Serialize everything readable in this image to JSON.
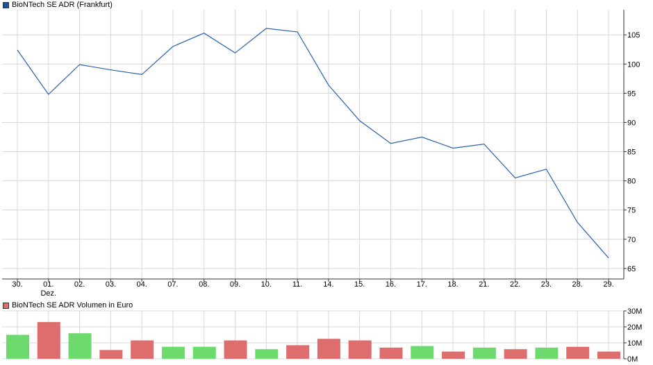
{
  "colors": {
    "price_line": "#2a5fb0",
    "price_swatch": "#1c4fa8",
    "volume_up": "#6cda6c",
    "volume_down": "#de6e6e",
    "grid": "#d8d8d8",
    "axis": "#333333"
  },
  "chart_data": [
    {
      "type": "line",
      "legend": "BioNTech SE ADR (Frankfurt)",
      "x": [
        "30.",
        "01.",
        "02.",
        "03.",
        "04.",
        "07.",
        "08.",
        "09.",
        "10.",
        "11.",
        "14.",
        "15.",
        "16.",
        "17.",
        "18.",
        "21.",
        "22.",
        "23.",
        "28.",
        "29."
      ],
      "x_sublabel": {
        "index": 1,
        "text": "Dez."
      },
      "series": [
        {
          "name": "BioNTech SE ADR (Frankfurt)",
          "values": [
            102.4,
            94.8,
            99.9,
            99.0,
            98.2,
            103.0,
            105.3,
            101.9,
            106.1,
            105.5,
            96.4,
            90.3,
            86.4,
            87.5,
            85.6,
            86.3,
            80.5,
            82.0,
            72.9,
            66.8
          ]
        }
      ],
      "yticks": [
        65,
        70,
        75,
        80,
        85,
        90,
        95,
        100,
        105
      ],
      "ylim": [
        63.2,
        109.3
      ],
      "grid": true,
      "y_axis_side": "right"
    },
    {
      "type": "bar",
      "legend": "BioNTech SE ADR Volumen in Euro",
      "categories": [
        "30.",
        "01.",
        "02.",
        "03.",
        "04.",
        "07.",
        "08.",
        "09.",
        "10.",
        "11.",
        "14.",
        "15.",
        "16.",
        "17.",
        "18.",
        "21.",
        "22.",
        "23.",
        "28.",
        "29."
      ],
      "values": [
        15.0,
        23.0,
        16.0,
        5.5,
        11.5,
        7.5,
        7.5,
        11.5,
        6.0,
        8.5,
        12.5,
        11.5,
        7.0,
        8.0,
        4.5,
        7.0,
        6.0,
        7.0,
        7.5,
        4.5
      ],
      "direction": [
        "up",
        "down",
        "up",
        "down",
        "down",
        "up",
        "up",
        "down",
        "up",
        "down",
        "down",
        "down",
        "down",
        "up",
        "down",
        "up",
        "down",
        "up",
        "down",
        "down"
      ],
      "yticks": [
        "0M",
        "10M",
        "20M",
        "30M"
      ],
      "ylim": [
        0,
        30
      ],
      "unit": "M",
      "grid": true,
      "y_axis_side": "right"
    }
  ]
}
